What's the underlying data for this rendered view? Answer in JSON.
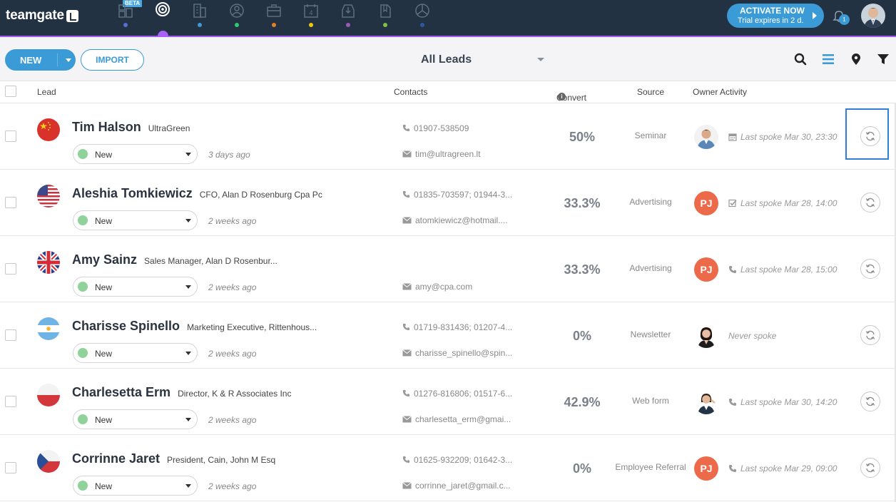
{
  "app": {
    "logo_text": "teamgate",
    "beta_label": "BETA"
  },
  "nav": {
    "icons": [
      {
        "name": "dashboard-icon",
        "dot": "#5b6bd8"
      },
      {
        "name": "leads-target-icon",
        "dot": "#a960f8",
        "active": true
      },
      {
        "name": "companies-building-icon",
        "dot": "#3a9bd6"
      },
      {
        "name": "contacts-person-icon",
        "dot": "#2ecc71"
      },
      {
        "name": "deals-briefcase-icon",
        "dot": "#e67e22"
      },
      {
        "name": "calendar-icon",
        "dot": "#f1c40f"
      },
      {
        "name": "inbox-icon",
        "dot": "#9b59b6"
      },
      {
        "name": "documents-icon",
        "dot": "#7fc242"
      },
      {
        "name": "reports-pie-icon",
        "dot": "#2c5aa0"
      }
    ],
    "calendar_number": "4"
  },
  "activate": {
    "title": "ACTIVATE NOW",
    "subtitle": "Trial expires in 2 d."
  },
  "notifications": {
    "count": "1"
  },
  "toolbar": {
    "new_label": "NEW",
    "import_label": "IMPORT",
    "view_label": "All Leads"
  },
  "columns": {
    "lead": "Lead",
    "contacts": "Contacts",
    "convert": "Convert %",
    "source": "Source",
    "owner_activity": "Owner Activity"
  },
  "colors": {
    "accent": "#3a9bd6",
    "topbar": "#233243",
    "status_new": "#8fd39b",
    "owner_pj": "#ec6a4a",
    "highlight": "#2f7fd8"
  },
  "leads": [
    {
      "name": "Tim Halson",
      "title": "UltraGreen",
      "flag": "china",
      "status": "New",
      "ago": "3 days ago",
      "phone": "01907-538509",
      "email": "tim@ultragreen.lt",
      "convert": "50%",
      "source": "Seminar",
      "owner": "photo-man",
      "owner_initials": "",
      "activity_icon": "calendar-icon",
      "activity": "Last spoke Mar 30, 23:30"
    },
    {
      "name": "Aleshia Tomkiewicz",
      "title": "CFO, Alan D Rosenburg Cpa Pc",
      "flag": "usa",
      "status": "New",
      "ago": "2 weeks ago",
      "phone": "01835-703597; 01944-3...",
      "email": "atomkiewicz@hotmail....",
      "convert": "33.3%",
      "source": "Advertising",
      "owner": "initials",
      "owner_initials": "PJ",
      "activity_icon": "task-check-icon",
      "activity": "Last spoke Mar 28, 14:00"
    },
    {
      "name": "Amy Sainz",
      "title": "Sales Manager, Alan D Rosenbur...",
      "flag": "uk",
      "status": "New",
      "ago": "2 weeks ago",
      "phone": "",
      "email": "amy@cpa.com",
      "convert": "33.3%",
      "source": "Advertising",
      "owner": "initials",
      "owner_initials": "PJ",
      "activity_icon": "phone-icon",
      "activity": "Last spoke Mar 28, 15:00"
    },
    {
      "name": "Charisse Spinello",
      "title": "Marketing Executive, Rittenhous...",
      "flag": "argentina",
      "status": "New",
      "ago": "2 weeks ago",
      "phone": "01719-831436; 01207-4...",
      "email": "charisse_spinello@spin...",
      "convert": "0%",
      "source": "Newsletter",
      "owner": "photo-woman",
      "owner_initials": "",
      "activity_icon": "",
      "activity": "Never spoke"
    },
    {
      "name": "Charlesetta Erm",
      "title": "Director, K & R Associates Inc",
      "flag": "poland",
      "status": "New",
      "ago": "2 weeks ago",
      "phone": "01276-816806; 01517-6...",
      "email": "charlesetta_erm@gmai...",
      "convert": "42.9%",
      "source": "Web form",
      "owner": "photo-woman2",
      "owner_initials": "",
      "activity_icon": "phone-icon",
      "activity": "Last spoke Mar 30, 14:20"
    },
    {
      "name": "Corrinne Jaret",
      "title": "President, Cain, John M Esq",
      "flag": "czech",
      "status": "New",
      "ago": "2 weeks ago",
      "phone": "01625-932209; 01642-3...",
      "email": "corrinne_jaret@gmail.c...",
      "convert": "0%",
      "source": "Employee Referral",
      "owner": "initials",
      "owner_initials": "PJ",
      "activity_icon": "phone-icon",
      "activity": "Last spoke Mar 29, 09:00"
    }
  ]
}
